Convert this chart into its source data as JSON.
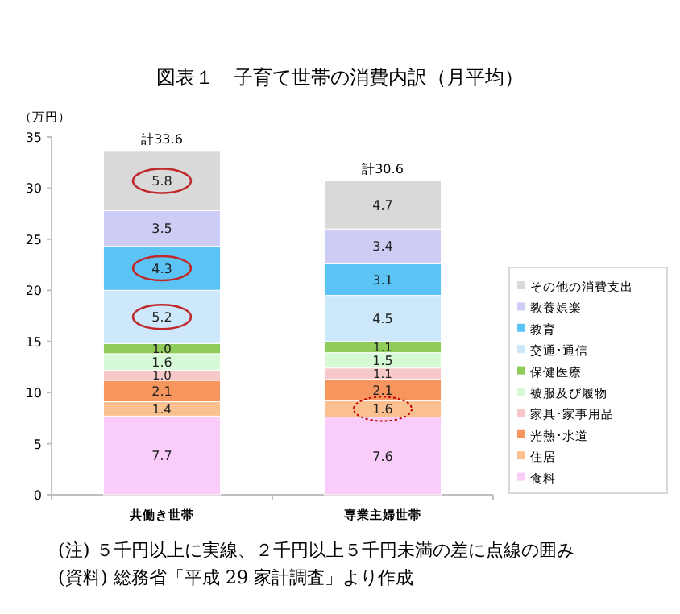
{
  "chart_data": {
    "type": "bar",
    "stacked": true,
    "title": "図表１　子育て世帯の消費内訳（月平均）",
    "ylabel": "（万円）",
    "categories": [
      "共働き世帯",
      "専業主婦世帯"
    ],
    "series": [
      {
        "name": "食料",
        "color": "#f9ccf9",
        "values": [
          7.7,
          7.6
        ]
      },
      {
        "name": "住居",
        "color": "#fac090",
        "values": [
          1.4,
          1.6
        ]
      },
      {
        "name": "光熱･水道",
        "color": "#f7955e",
        "values": [
          2.1,
          2.1
        ]
      },
      {
        "name": "家具･家事用品",
        "color": "#f6c8c8",
        "values": [
          1.0,
          1.1
        ],
        "value_labels": [
          "1.0",
          "1.1"
        ]
      },
      {
        "name": "被服及び履物",
        "color": "#d5fad5",
        "values": [
          1.6,
          1.5
        ]
      },
      {
        "name": "保健医療",
        "color": "#8fcc5a",
        "values": [
          1.0,
          1.1
        ],
        "value_labels": [
          "1.0",
          "1.1"
        ]
      },
      {
        "name": "交通･通信",
        "color": "#cce8fa",
        "values": [
          5.2,
          4.5
        ]
      },
      {
        "name": "教育",
        "color": "#5bc4f5",
        "values": [
          4.3,
          3.1
        ]
      },
      {
        "name": "教養娯楽",
        "color": "#ccccf5",
        "values": [
          3.5,
          3.4
        ]
      },
      {
        "name": "その他の消費支出",
        "color": "#d9d9d9",
        "values": [
          5.8,
          4.7
        ]
      }
    ],
    "totals": [
      "計33.6",
      "計30.6"
    ],
    "data_labels": true,
    "ylim": [
      0,
      35
    ],
    "yticks": [
      0,
      5,
      10,
      15,
      20,
      25,
      30,
      35
    ],
    "legend": "right",
    "annotations": [
      "(注) ５千円以上に実線、２千円以上５千円未満の差に点線の囲み",
      "(資料) 総務省「平成 29 家計調査」より作成"
    ]
  }
}
